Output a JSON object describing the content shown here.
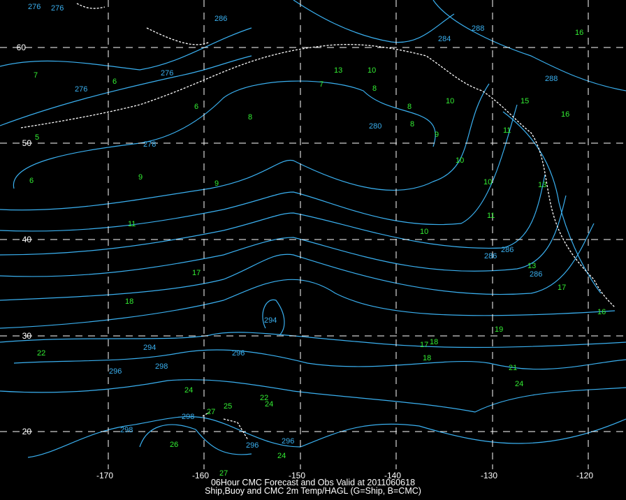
{
  "title_line1": "06Hour CMC Forecast and Obs Valid at 2011060618",
  "title_line2": "Ship,Buoy and CMC 2m Temp/HAGL (G=Ship, B=CMC)",
  "colors": {
    "background": "#000000",
    "ship_obs": "#33ee33",
    "cmc_contours": "#3ab0f0",
    "coastline": "#ffffff",
    "grid": "#ffffff"
  },
  "lat_labels": [
    "60",
    "50",
    "40",
    "30",
    "20"
  ],
  "lon_labels": [
    "-170",
    "-160",
    "-150",
    "-140",
    "-130",
    "-120"
  ],
  "ship_values": [
    "7",
    "5",
    "6",
    "9",
    "9",
    "8",
    "7",
    "13",
    "10",
    "8",
    "8",
    "8",
    "9",
    "10",
    "10",
    "11",
    "10",
    "11",
    "17",
    "18",
    "22",
    "24",
    "25",
    "22",
    "24",
    "27",
    "26",
    "24",
    "27",
    "17",
    "18",
    "18",
    "19",
    "21",
    "24",
    "13",
    "17",
    "16",
    "15",
    "16",
    "16",
    "6",
    "6",
    "10",
    "11",
    "13"
  ],
  "cmc_values": [
    "276",
    "276",
    "276",
    "276",
    "278",
    "280",
    "286",
    "286",
    "286",
    "294",
    "294",
    "296",
    "298",
    "296",
    "298",
    "298",
    "296",
    "296",
    "288",
    "284",
    "286",
    "288"
  ]
}
